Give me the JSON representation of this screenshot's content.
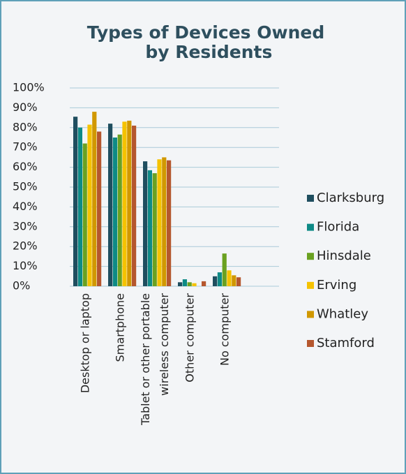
{
  "chart_data": {
    "type": "bar",
    "title": "Types of Devices Owned by Residents",
    "categories": [
      "Desktop or laptop",
      "Smartphone",
      "Tablet or other portable wireless computer",
      "Other computer",
      "No computer"
    ],
    "series": [
      {
        "name": "Clarksburg",
        "color": "#1f4e5f",
        "values": [
          85.5,
          82,
          63,
          2,
          5
        ]
      },
      {
        "name": "Florida",
        "color": "#0e8a86",
        "values": [
          80,
          75,
          58.5,
          3.5,
          7
        ]
      },
      {
        "name": "Hinsdale",
        "color": "#6aa121",
        "values": [
          72,
          76.5,
          57,
          2,
          16.5
        ]
      },
      {
        "name": "Erving",
        "color": "#f5c200",
        "values": [
          81.5,
          83,
          64,
          1.5,
          8
        ]
      },
      {
        "name": "Whatley",
        "color": "#d19800",
        "values": [
          88,
          83.5,
          65,
          0,
          5.5
        ]
      },
      {
        "name": "Stamford",
        "color": "#b5572e",
        "values": [
          78,
          81,
          63.5,
          2.5,
          4.5
        ]
      }
    ],
    "ylim": [
      0,
      100
    ],
    "yticks": [
      {
        "value": 0,
        "label": "0%"
      },
      {
        "value": 10,
        "label": "10%"
      },
      {
        "value": 20,
        "label": "20%"
      },
      {
        "value": 30,
        "label": "30%"
      },
      {
        "value": 40,
        "label": "40%"
      },
      {
        "value": 50,
        "label": "50%"
      },
      {
        "value": 60,
        "label": "60%"
      },
      {
        "value": 70,
        "label": "70%"
      },
      {
        "value": 80,
        "label": "80%"
      },
      {
        "value": 90,
        "label": "90%"
      },
      {
        "value": 100,
        "label": "100%"
      }
    ],
    "grid": true,
    "legend": "right"
  }
}
